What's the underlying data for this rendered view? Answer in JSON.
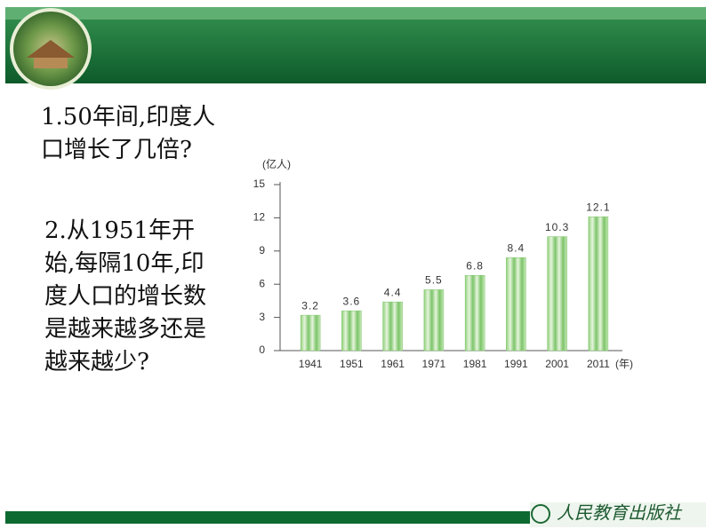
{
  "questions": [
    "1.50年间,印度人口增长了几倍?",
    "2.从1951年开始,每隔10年,印度人口的增长数是越来越多还是越来越少?"
  ],
  "publisher": "人民教育出版社",
  "chart_data": {
    "type": "bar",
    "ylabel": "(亿人)",
    "xlabel": "(年)",
    "categories": [
      "1941",
      "1951",
      "1961",
      "1971",
      "1981",
      "1991",
      "2001",
      "2011"
    ],
    "values": [
      3.2,
      3.6,
      4.4,
      5.5,
      6.8,
      8.4,
      10.3,
      12.1
    ],
    "color": "#7cc46a",
    "ylim": [
      0,
      15
    ],
    "yticks": [
      0,
      3,
      6,
      9,
      12,
      15
    ]
  }
}
